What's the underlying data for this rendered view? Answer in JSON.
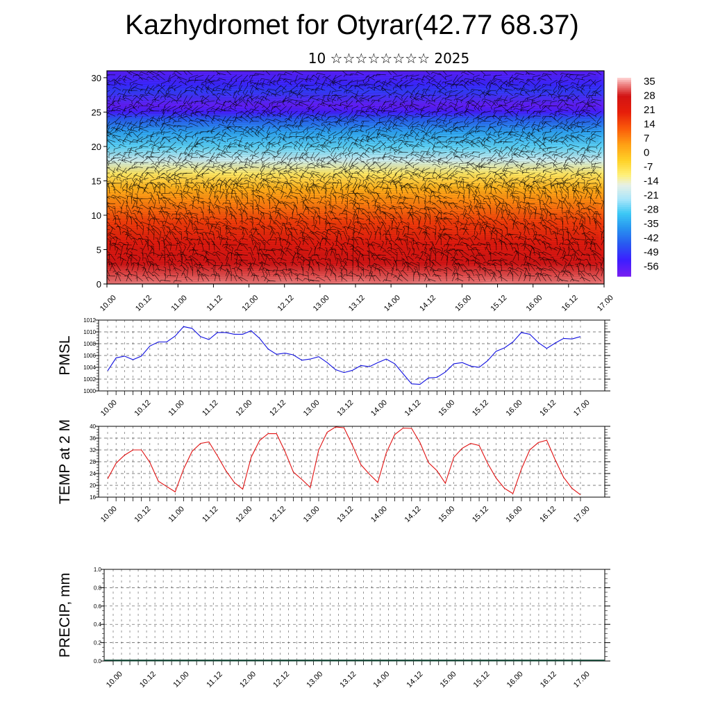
{
  "header": {
    "title": "Kazhydromet for Otyrar(42.77 68.37)",
    "subtitle": "10 ☆☆☆☆☆☆☆☆ 2025"
  },
  "time_labels": [
    "10.00",
    "10.12",
    "11.00",
    "11.12",
    "12.00",
    "12.12",
    "13.00",
    "13.12",
    "14.00",
    "14.12",
    "15.00",
    "15.12",
    "16.00",
    "16.12",
    "17.00"
  ],
  "colors": {
    "pmsl_line": "#1010e0",
    "temp_line": "#e01010",
    "precip_line": "#1a4a3a",
    "frame": "#000000",
    "grid": "#555555"
  },
  "chart_data": [
    {
      "type": "heatmap",
      "title": "Kazhydromet for Otyrar(42.77 68.37)",
      "subtitle": "10 ☆☆☆☆☆☆☆☆ 2025",
      "ylim": [
        0,
        31
      ],
      "y_ticks": [
        0,
        5,
        10,
        15,
        20,
        25,
        30
      ],
      "colorbar": {
        "labels": [
          "35",
          "28",
          "21",
          "14",
          "7",
          "0",
          "-7",
          "-14",
          "-21",
          "-28",
          "-35",
          "-42",
          "-49",
          "-56"
        ],
        "range": [
          -60,
          38
        ]
      },
      "overlay": "wind barbs",
      "profile": [
        {
          "y": 0,
          "value": 34
        },
        {
          "y": 3,
          "value": 29
        },
        {
          "y": 6,
          "value": 24
        },
        {
          "y": 9,
          "value": 17
        },
        {
          "y": 12,
          "value": 8
        },
        {
          "y": 14,
          "value": 2
        },
        {
          "y": 16,
          "value": -8
        },
        {
          "y": 18,
          "value": -18
        },
        {
          "y": 20,
          "value": -27
        },
        {
          "y": 22,
          "value": -34
        },
        {
          "y": 24,
          "value": -44
        },
        {
          "y": 25,
          "value": -53
        },
        {
          "y": 26,
          "value": -57
        },
        {
          "y": 28,
          "value": -48
        },
        {
          "y": 29,
          "value": -51
        },
        {
          "y": 31,
          "value": -56
        }
      ]
    },
    {
      "type": "line",
      "ylabel": "PMSL",
      "ylim": [
        1000,
        1012
      ],
      "y_ticks": [
        1000,
        1002,
        1004,
        1006,
        1008,
        1010,
        1012
      ],
      "x": [
        0,
        0.125,
        0.25,
        0.375,
        0.5,
        0.625,
        0.75,
        0.875,
        1,
        1.125,
        1.25,
        1.375,
        1.5,
        1.625,
        1.75,
        1.875,
        2,
        2.125,
        2.25,
        2.375,
        2.5,
        2.625,
        2.75,
        2.875,
        3,
        3.125,
        3.25,
        3.375,
        3.5,
        3.625,
        3.75,
        3.875,
        4,
        4.125,
        4.25,
        4.375,
        4.5,
        4.625,
        4.75,
        4.875,
        5,
        5.125,
        5.25,
        5.375,
        5.5,
        5.625,
        5.75,
        5.875,
        6,
        6.125,
        6.25,
        6.375,
        6.5,
        6.625,
        6.75,
        6.875,
        7
      ],
      "series": [
        {
          "values": [
            1003.4,
            1005.6,
            1005.9,
            1005.3,
            1005.9,
            1007.6,
            1008.3,
            1008.3,
            1009.3,
            1010.9,
            1010.6,
            1009.2,
            1008.7,
            1009.9,
            1009.9,
            1009.6,
            1009.6,
            1010.2,
            1008.9,
            1007.1,
            1006.2,
            1006.4,
            1006.1,
            1005.2,
            1005.4,
            1005.8,
            1004.8,
            1003.6,
            1003.1,
            1003.5,
            1004.3,
            1004.1,
            1004.8,
            1005.4,
            1004.6,
            1002.9,
            1001.2,
            1001.1,
            1002.2,
            1002.3,
            1003.2,
            1004.6,
            1004.8,
            1004.2,
            1004.0,
            1005.1,
            1006.7,
            1007.3,
            1008.3,
            1009.9,
            1009.6,
            1008.2,
            1007.2,
            1008.1,
            1008.9,
            1008.8,
            1009.2
          ]
        }
      ]
    },
    {
      "type": "line",
      "ylabel": "TEMP at 2 M",
      "ylim": [
        16,
        40
      ],
      "y_ticks": [
        16,
        20,
        24,
        28,
        32,
        36,
        40
      ],
      "x": [
        0,
        0.125,
        0.25,
        0.375,
        0.5,
        0.625,
        0.75,
        0.875,
        1,
        1.125,
        1.25,
        1.375,
        1.5,
        1.625,
        1.75,
        1.875,
        2,
        2.125,
        2.25,
        2.375,
        2.5,
        2.625,
        2.75,
        2.875,
        3,
        3.125,
        3.25,
        3.375,
        3.5,
        3.625,
        3.75,
        3.875,
        4,
        4.125,
        4.25,
        4.375,
        4.5,
        4.625,
        4.75,
        4.875,
        5,
        5.125,
        5.25,
        5.375,
        5.5,
        5.625,
        5.75,
        5.875,
        6,
        6.125,
        6.25,
        6.375,
        6.5,
        6.625,
        6.75,
        6.875,
        7
      ],
      "series": [
        {
          "values": [
            22.2,
            27.5,
            30.2,
            32.0,
            32.0,
            27.8,
            21.4,
            19.6,
            17.8,
            25.5,
            31.5,
            34.2,
            34.7,
            30.0,
            25.0,
            21.0,
            18.7,
            29.5,
            35.2,
            37.5,
            37.5,
            31.5,
            24.5,
            22.0,
            19.3,
            32.0,
            38.0,
            39.8,
            39.5,
            33.5,
            27.0,
            23.8,
            21.0,
            31.0,
            37.2,
            39.4,
            39.3,
            34.5,
            27.7,
            25.0,
            20.7,
            29.5,
            32.6,
            34.2,
            33.5,
            27.5,
            22.5,
            19.0,
            17.2,
            25.5,
            32.0,
            34.5,
            35.3,
            28.7,
            22.7,
            19.0,
            16.8
          ]
        }
      ]
    },
    {
      "type": "line",
      "ylabel": "PRECIP, mm",
      "ylim": [
        0,
        1
      ],
      "y_ticks": [
        "0.0",
        "0.2",
        "0.4",
        "0.6",
        "0.8",
        "1.0"
      ],
      "series": [
        {
          "values": [
            0,
            0,
            0,
            0,
            0,
            0,
            0,
            0,
            0,
            0,
            0,
            0,
            0,
            0,
            0,
            0,
            0,
            0,
            0,
            0,
            0,
            0,
            0,
            0,
            0,
            0,
            0,
            0,
            0,
            0,
            0,
            0,
            0,
            0,
            0,
            0,
            0,
            0,
            0,
            0,
            0,
            0,
            0,
            0,
            0,
            0,
            0,
            0,
            0,
            0,
            0,
            0,
            0,
            0,
            0,
            0,
            0
          ]
        }
      ]
    }
  ]
}
